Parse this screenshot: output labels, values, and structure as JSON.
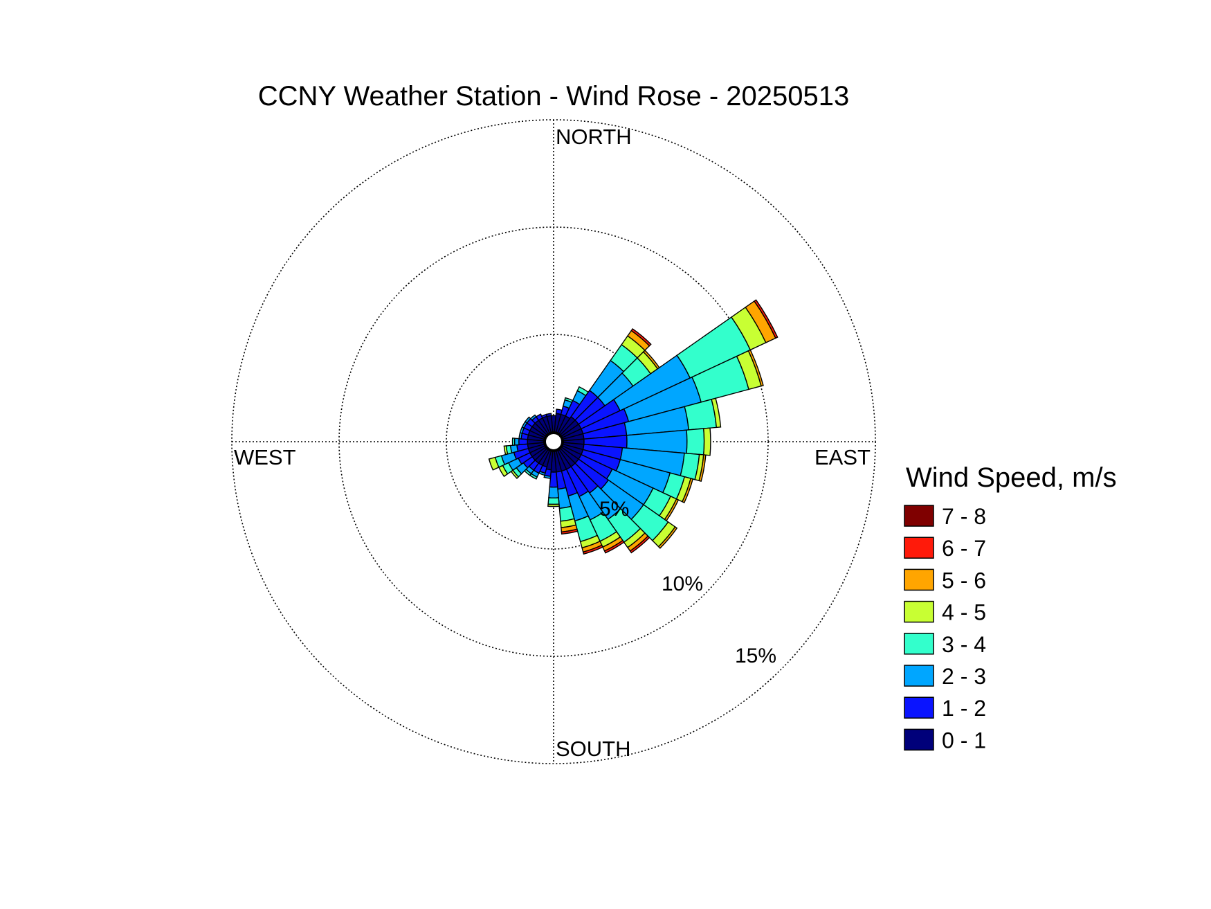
{
  "chart_data": {
    "type": "windrose",
    "title": "CCNY Weather Station - Wind Rose - 20250513",
    "direction_labels": {
      "north": "NORTH",
      "east": "EAST",
      "south": "SOUTH",
      "west": "WEST"
    },
    "radial_ticks": [
      5,
      10,
      15
    ],
    "radial_tick_labels": [
      "5%",
      "10%",
      "15%"
    ],
    "rmax": 15,
    "legend_title": "Wind Speed, m/s",
    "speed_bins": [
      {
        "label": "0 - 1",
        "color": "#00007a"
      },
      {
        "label": "1 - 2",
        "color": "#0a14ff"
      },
      {
        "label": "2 - 3",
        "color": "#00a6ff"
      },
      {
        "label": "3 - 4",
        "color": "#33ffcc"
      },
      {
        "label": "4 - 5",
        "color": "#c8ff33"
      },
      {
        "label": "5 - 6",
        "color": "#ffa500"
      },
      {
        "label": "6 - 7",
        "color": "#ff1a0a"
      },
      {
        "label": "7 - 8",
        "color": "#7f0000"
      }
    ],
    "sector_width_deg": 10,
    "sectors": [
      {
        "dir": 0,
        "values": [
          0.8,
          0,
          0,
          0,
          0,
          0,
          0,
          0
        ]
      },
      {
        "dir": 10,
        "values": [
          0.9,
          0.2,
          0,
          0,
          0,
          0,
          0,
          0
        ]
      },
      {
        "dir": 20,
        "values": [
          0.9,
          0.4,
          0.3,
          0.1,
          0,
          0,
          0,
          0
        ]
      },
      {
        "dir": 30,
        "values": [
          0.9,
          0.8,
          0.5,
          0.2,
          0,
          0,
          0,
          0
        ]
      },
      {
        "dir": 40,
        "values": [
          1.0,
          1.5,
          1.7,
          0.9,
          0.5,
          0.3,
          0.1,
          0
        ]
      },
      {
        "dir": 50,
        "values": [
          1.0,
          1.5,
          1.6,
          1.0,
          0.4,
          0.1,
          0,
          0
        ]
      },
      {
        "dir": 60,
        "values": [
          1.0,
          2.0,
          3.6,
          3.1,
          0.8,
          0.5,
          0.1,
          0
        ]
      },
      {
        "dir": 70,
        "values": [
          1.0,
          2.2,
          3.5,
          2.3,
          0.6,
          0.1,
          0,
          0
        ]
      },
      {
        "dir": 80,
        "values": [
          1.0,
          2.0,
          2.9,
          1.3,
          0.2,
          0,
          0,
          0
        ]
      },
      {
        "dir": 90,
        "values": [
          1.0,
          2.0,
          2.8,
          0.8,
          0.3,
          0,
          0,
          0
        ]
      },
      {
        "dir": 100,
        "values": [
          1.0,
          1.8,
          2.9,
          0.7,
          0.2,
          0.1,
          0,
          0
        ]
      },
      {
        "dir": 110,
        "values": [
          1.0,
          1.8,
          2.4,
          0.7,
          0.3,
          0.1,
          0,
          0
        ]
      },
      {
        "dir": 120,
        "values": [
          1.0,
          1.6,
          2.1,
          0.9,
          0.3,
          0.1,
          0,
          0
        ]
      },
      {
        "dir": 130,
        "values": [
          1.0,
          1.7,
          2.0,
          1.4,
          0.4,
          0.1,
          0,
          0
        ]
      },
      {
        "dir": 140,
        "values": [
          1.0,
          1.5,
          1.5,
          1.3,
          0.3,
          0.2,
          0.1,
          0
        ]
      },
      {
        "dir": 150,
        "values": [
          1.0,
          1.4,
          1.2,
          1.1,
          0.3,
          0.2,
          0.1,
          0
        ]
      },
      {
        "dir": 160,
        "values": [
          1.0,
          1.2,
          1.2,
          1.0,
          0.3,
          0.2,
          0.1,
          0
        ]
      },
      {
        "dir": 170,
        "values": [
          1.0,
          0.8,
          0.9,
          0.6,
          0.3,
          0.2,
          0.1,
          0
        ]
      },
      {
        "dir": 180,
        "values": [
          1.0,
          0.7,
          0.5,
          0.3,
          0.1,
          0,
          0,
          0
        ]
      },
      {
        "dir": 190,
        "values": [
          0.9,
          0.3,
          0.1,
          0,
          0,
          0,
          0,
          0
        ]
      },
      {
        "dir": 200,
        "values": [
          0.8,
          0.3,
          0.1,
          0,
          0,
          0,
          0,
          0
        ]
      },
      {
        "dir": 210,
        "values": [
          0.8,
          0.4,
          0.2,
          0.1,
          0,
          0,
          0,
          0
        ]
      },
      {
        "dir": 220,
        "values": [
          0.8,
          0.4,
          0.2,
          0.1,
          0,
          0,
          0,
          0
        ]
      },
      {
        "dir": 230,
        "values": [
          0.8,
          0.5,
          0.4,
          0.2,
          0.1,
          0,
          0,
          0
        ]
      },
      {
        "dir": 240,
        "values": [
          0.8,
          0.6,
          0.5,
          0.3,
          0.2,
          0,
          0,
          0
        ]
      },
      {
        "dir": 250,
        "values": [
          0.8,
          0.7,
          0.6,
          0.3,
          0.3,
          0,
          0,
          0
        ]
      },
      {
        "dir": 260,
        "values": [
          0.8,
          0.5,
          0.3,
          0.2,
          0.1,
          0,
          0,
          0
        ]
      },
      {
        "dir": 270,
        "values": [
          0.8,
          0.4,
          0.2,
          0.1,
          0,
          0,
          0,
          0
        ]
      },
      {
        "dir": 280,
        "values": [
          0.8,
          0.3,
          0.1,
          0,
          0,
          0,
          0,
          0
        ]
      },
      {
        "dir": 290,
        "values": [
          0.8,
          0.3,
          0.1,
          0,
          0,
          0,
          0,
          0
        ]
      },
      {
        "dir": 300,
        "values": [
          0.8,
          0.3,
          0.1,
          0,
          0,
          0,
          0,
          0
        ]
      },
      {
        "dir": 310,
        "values": [
          0.8,
          0.3,
          0.1,
          0,
          0,
          0,
          0,
          0
        ]
      },
      {
        "dir": 320,
        "values": [
          0.8,
          0.2,
          0.1,
          0,
          0,
          0,
          0,
          0
        ]
      },
      {
        "dir": 330,
        "values": [
          0.8,
          0.2,
          0,
          0,
          0,
          0,
          0,
          0
        ]
      },
      {
        "dir": 340,
        "values": [
          0.8,
          0.1,
          0,
          0,
          0,
          0,
          0,
          0
        ]
      },
      {
        "dir": 350,
        "values": [
          0.8,
          0.1,
          0,
          0,
          0,
          0,
          0,
          0
        ]
      }
    ]
  }
}
